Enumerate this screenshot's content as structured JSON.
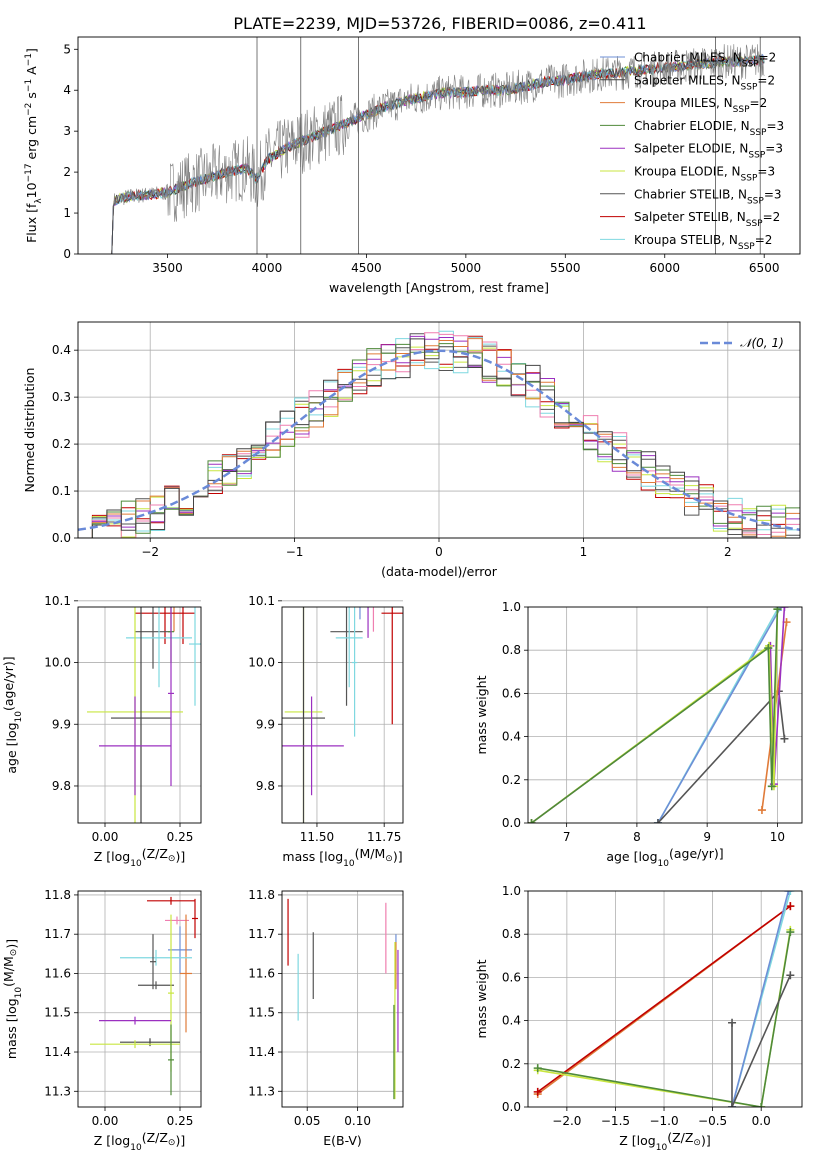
{
  "page_title": "PLATE=2239, MJD=53726, FIBERID=0086, z=0.411",
  "colors": {
    "chabrier_miles": "#6d8fd6",
    "salpeter_miles": "#444444",
    "kroupa_miles": "#e07b39",
    "chabrier_elodie": "#4f8a3a",
    "salpeter_elodie": "#9b30c0",
    "kroupa_elodie": "#c8e640",
    "chabrier_stelib": "#555555",
    "salpeter_stelib": "#c00000",
    "kroupa_stelib": "#7fd8e0",
    "pink": "#ef7fb0",
    "data": "#808080",
    "gaussian": "#6a8ad8",
    "grid": "#b0b0b0"
  },
  "chart_data": [
    {
      "panel": "spectrum",
      "type": "line",
      "title": "PLATE=2239, MJD=53726, FIBERID=0086, z=0.411",
      "xlabel": "wavelength [Angstrom, rest frame]",
      "ylabel": "Flux [f$_\\lambda$10$^{-17}$ erg cm$^{-2}$ s$^{-1}$ A$^{-1}$]",
      "ylabel_parts": [
        "Flux [f",
        "λ",
        "10",
        "−17",
        " erg cm",
        "−2",
        " s",
        "−1",
        " A",
        "−1",
        "]"
      ],
      "xlim": [
        3050,
        6680
      ],
      "ylim": [
        0,
        5.3
      ],
      "xticks": [
        3500,
        4000,
        4500,
        5000,
        5500,
        6000,
        6500
      ],
      "yticks": [
        0,
        1,
        2,
        3,
        4,
        5
      ],
      "grid": false,
      "legend_position": "right",
      "legend": [
        {
          "pre": "Chabrier MILES, N",
          "sub": "SSP",
          "post": "=2",
          "color_key": "chabrier_miles"
        },
        {
          "pre": "Salpeter MILES, N",
          "sub": "SSP",
          "post": "=2",
          "color_key": "salpeter_miles"
        },
        {
          "pre": "Kroupa MILES, N",
          "sub": "SSP",
          "post": "=2",
          "color_key": "kroupa_miles"
        },
        {
          "pre": "Chabrier ELODIE, N",
          "sub": "SSP",
          "post": "=3",
          "color_key": "chabrier_elodie"
        },
        {
          "pre": "Salpeter ELODIE, N",
          "sub": "SSP",
          "post": "=3",
          "color_key": "salpeter_elodie"
        },
        {
          "pre": "Kroupa ELODIE, N",
          "sub": "SSP",
          "post": "=3",
          "color_key": "kroupa_elodie"
        },
        {
          "pre": "Chabrier STELIB, N",
          "sub": "SSP",
          "post": "=3",
          "color_key": "chabrier_stelib"
        },
        {
          "pre": "Salpeter STELIB, N",
          "sub": "SSP",
          "post": "=2",
          "color_key": "salpeter_stelib"
        },
        {
          "pre": "Kroupa STELIB, N",
          "sub": "SSP",
          "post": "=2",
          "color_key": "kroupa_stelib"
        }
      ],
      "continuum": [
        [
          3220,
          0
        ],
        [
          3225,
          1.3
        ],
        [
          3300,
          1.4
        ],
        [
          3400,
          1.45
        ],
        [
          3500,
          1.5
        ],
        [
          3600,
          1.7
        ],
        [
          3700,
          1.85
        ],
        [
          3800,
          2.0
        ],
        [
          3900,
          2.1
        ],
        [
          3950,
          1.8
        ],
        [
          4000,
          2.3
        ],
        [
          4100,
          2.6
        ],
        [
          4200,
          2.8
        ],
        [
          4300,
          3.0
        ],
        [
          4400,
          3.2
        ],
        [
          4500,
          3.4
        ],
        [
          4600,
          3.6
        ],
        [
          4700,
          3.75
        ],
        [
          4800,
          3.85
        ],
        [
          4900,
          3.95
        ],
        [
          5000,
          3.95
        ],
        [
          5100,
          4.0
        ],
        [
          5200,
          4.0
        ],
        [
          5300,
          4.1
        ],
        [
          5400,
          4.2
        ],
        [
          5500,
          4.25
        ],
        [
          5600,
          4.35
        ],
        [
          5700,
          4.4
        ],
        [
          5800,
          4.45
        ],
        [
          5900,
          4.5
        ],
        [
          6000,
          4.55
        ],
        [
          6100,
          4.6
        ],
        [
          6200,
          4.65
        ],
        [
          6300,
          4.7
        ],
        [
          6400,
          4.7
        ],
        [
          6500,
          4.75
        ]
      ],
      "spikes": [
        3950,
        4170,
        4460,
        6255,
        6480
      ]
    },
    {
      "panel": "residuals",
      "type": "line",
      "xlabel": "(data-model)/error",
      "ylabel": "Normed distribution",
      "xlim": [
        -2.5,
        2.5
      ],
      "ylim": [
        0,
        0.46
      ],
      "xticks": [
        -2,
        -1,
        0,
        1,
        2
      ],
      "yticks": [
        0.0,
        0.1,
        0.2,
        0.3,
        0.4
      ],
      "grid": true,
      "legend_position": "top-right",
      "legend_label": "𝒩(0, 1)",
      "gaussian": {
        "mu": 0,
        "sigma": 1
      }
    },
    {
      "panel": "age-vs-Z",
      "type": "scatter",
      "xlabel_parts": [
        "Z [log",
        "10",
        "(Z/Z",
        "⊙",
        ")]"
      ],
      "ylabel_parts": [
        "age  [log",
        "10",
        "(age/yr)]"
      ],
      "xlim": [
        -0.09,
        0.32
      ],
      "ylim": [
        9.74,
        10.09
      ],
      "xticks": [
        0.0,
        0.25
      ],
      "yticks": [
        9.8,
        9.9,
        10.0,
        10.1
      ],
      "grid": true,
      "errorbars": [
        {
          "x": 0.23,
          "y": 10.13,
          "xerr": 0.05,
          "yerr": 0.08,
          "color_key": "kroupa_miles"
        },
        {
          "x": 0.26,
          "y": 10.13,
          "xerr": 0.03,
          "yerr": 0.1,
          "color_key": "salpeter_stelib"
        },
        {
          "x": 0.2,
          "y": 10.08,
          "xerr": 0.1,
          "yerr": 0.05,
          "color_key": "salpeter_stelib"
        },
        {
          "x": 0.16,
          "y": 10.05,
          "xerr": 0.06,
          "yerr": 0.06,
          "color_key": "chabrier_stelib"
        },
        {
          "x": 0.18,
          "y": 10.04,
          "xerr": 0.11,
          "yerr": 0.08,
          "color_key": "kroupa_stelib"
        },
        {
          "x": 0.3,
          "y": 10.03,
          "xerr": 0.02,
          "yerr": 0.1,
          "color_key": "kroupa_stelib"
        },
        {
          "x": 0.22,
          "y": 10.05,
          "xerr": 0.01,
          "yerr": 0.05,
          "color_key": "chabrier_elodie"
        },
        {
          "x": 0.1,
          "y": 9.92,
          "xerr": 0.16,
          "yerr": 0.18,
          "color_key": "kroupa_elodie"
        },
        {
          "x": 0.12,
          "y": 9.91,
          "xerr": 0.1,
          "yerr": 0.2,
          "color_key": "salpeter_miles"
        },
        {
          "x": 0.1,
          "y": 9.865,
          "xerr": 0.12,
          "yerr": 0.08,
          "color_key": "salpeter_elodie"
        },
        {
          "x": 0.22,
          "y": 9.95,
          "xerr": 0.01,
          "yerr": 0.15,
          "color_key": "salpeter_elodie"
        }
      ]
    },
    {
      "panel": "age-vs-mass",
      "type": "scatter",
      "xlabel_parts": [
        "mass [log",
        "10",
        "(M/M",
        "⊙",
        ")]"
      ],
      "ylabel": "",
      "xlim": [
        11.37,
        11.82
      ],
      "ylim": [
        9.74,
        10.09
      ],
      "xticks": [
        11.5,
        11.75
      ],
      "yticks": [
        9.8,
        9.9,
        10.0,
        10.1
      ],
      "grid": true,
      "errorbars": [
        {
          "x": 11.58,
          "y": 10.13,
          "xerr": 0.12,
          "yerr": 0.04,
          "color_key": "kroupa_miles"
        },
        {
          "x": 11.66,
          "y": 10.13,
          "xerr": 0.04,
          "yerr": 0.06,
          "color_key": "chabrier_miles"
        },
        {
          "x": 11.69,
          "y": 10.12,
          "xerr": 0.01,
          "yerr": 0.08,
          "color_key": "salpeter_elodie"
        },
        {
          "x": 11.71,
          "y": 10.1,
          "xerr": 0.01,
          "yerr": 0.05,
          "color_key": "pink"
        },
        {
          "x": 11.61,
          "y": 10.05,
          "xerr": 0.06,
          "yerr": 0.12,
          "color_key": "chabrier_stelib"
        },
        {
          "x": 11.62,
          "y": 10.04,
          "xerr": 0.05,
          "yerr": 0.08,
          "color_key": "kroupa_stelib"
        },
        {
          "x": 11.64,
          "y": 10.0,
          "xerr": 0.01,
          "yerr": 0.12,
          "color_key": "kroupa_stelib"
        },
        {
          "x": 11.78,
          "y": 10.08,
          "xerr": 0.04,
          "yerr": 0.18,
          "color_key": "salpeter_stelib"
        },
        {
          "x": 11.45,
          "y": 9.92,
          "xerr": 0.07,
          "yerr": 0.19,
          "color_key": "kroupa_elodie"
        },
        {
          "x": 11.45,
          "y": 9.91,
          "xerr": 0.08,
          "yerr": 0.2,
          "color_key": "salpeter_miles"
        },
        {
          "x": 11.48,
          "y": 9.865,
          "xerr": 0.12,
          "yerr": 0.08,
          "color_key": "salpeter_elodie"
        }
      ]
    },
    {
      "panel": "weight-vs-age",
      "type": "line",
      "xlabel_parts": [
        "age  [log",
        "10",
        "(age/yr)]"
      ],
      "ylabel": "mass weight",
      "xlim": [
        6.45,
        10.35
      ],
      "ylim": [
        0,
        1.0
      ],
      "xticks": [
        7,
        8,
        9,
        10
      ],
      "yticks": [
        0.0,
        0.2,
        0.4,
        0.6,
        0.8,
        1.0
      ],
      "grid": true,
      "series": [
        {
          "color_key": "kroupa_stelib",
          "points": [
            [
              8.3,
              0.0
            ],
            [
              10.02,
              1.0
            ]
          ]
        },
        {
          "color_key": "chabrier_miles",
          "points": [
            [
              8.3,
              0.0
            ],
            [
              10.05,
              1.0
            ]
          ]
        },
        {
          "color_key": "chabrier_stelib",
          "points": [
            [
              8.3,
              0.0
            ],
            [
              10.02,
              0.61
            ],
            [
              10.1,
              0.39
            ]
          ]
        },
        {
          "color_key": "kroupa_miles",
          "points": [
            [
              9.78,
              0.06
            ],
            [
              10.13,
              0.93
            ]
          ]
        },
        {
          "color_key": "salpeter_elodie",
          "points": [
            [
              6.5,
              0.0
            ],
            [
              9.9,
              0.82
            ],
            [
              9.95,
              0.18
            ],
            [
              10.1,
              1.0
            ]
          ]
        },
        {
          "color_key": "kroupa_elodie",
          "points": [
            [
              6.5,
              0.0
            ],
            [
              9.88,
              0.82
            ],
            [
              9.95,
              0.17
            ],
            [
              10.0,
              0.99
            ]
          ]
        },
        {
          "color_key": "chabrier_elodie",
          "points": [
            [
              6.5,
              0.0
            ],
            [
              9.87,
              0.81
            ],
            [
              9.92,
              0.17
            ],
            [
              10.0,
              0.99
            ]
          ]
        }
      ]
    },
    {
      "panel": "mass-vs-Z",
      "type": "scatter",
      "xlabel_parts": [
        "Z [log",
        "10",
        "(Z/Z",
        "⊙",
        ")]"
      ],
      "ylabel_parts": [
        "mass [log",
        "10",
        "(M/M",
        "⊙",
        ")]"
      ],
      "xlim": [
        -0.09,
        0.32
      ],
      "ylim": [
        11.26,
        11.81
      ],
      "xticks": [
        0.0,
        0.25
      ],
      "yticks": [
        11.3,
        11.4,
        11.5,
        11.6,
        11.7,
        11.8
      ],
      "grid": true,
      "errorbars": [
        {
          "x": 0.22,
          "y": 11.785,
          "xerr": 0.08,
          "yerr": 0.01,
          "color_key": "salpeter_stelib"
        },
        {
          "x": 0.3,
          "y": 11.74,
          "xerr": 0.01,
          "yerr": 0.05,
          "color_key": "salpeter_stelib"
        },
        {
          "x": 0.24,
          "y": 11.735,
          "xerr": 0.04,
          "yerr": 0.01,
          "color_key": "pink"
        },
        {
          "x": 0.25,
          "y": 11.66,
          "xerr": 0.04,
          "yerr": 0.06,
          "color_key": "chabrier_miles"
        },
        {
          "x": 0.27,
          "y": 11.6,
          "xerr": 0.02,
          "yerr": 0.15,
          "color_key": "kroupa_miles"
        },
        {
          "x": 0.17,
          "y": 11.64,
          "xerr": 0.12,
          "yerr": 0.02,
          "color_key": "kroupa_stelib"
        },
        {
          "x": 0.16,
          "y": 11.63,
          "xerr": 0.01,
          "yerr": 0.07,
          "color_key": "chabrier_stelib"
        },
        {
          "x": 0.17,
          "y": 11.57,
          "xerr": 0.06,
          "yerr": 0.01,
          "color_key": "chabrier_stelib"
        },
        {
          "x": 0.22,
          "y": 11.55,
          "xerr": 0.01,
          "yerr": 0.2,
          "color_key": "kroupa_elodie"
        },
        {
          "x": 0.1,
          "y": 11.48,
          "xerr": 0.12,
          "yerr": 0.01,
          "color_key": "salpeter_elodie"
        },
        {
          "x": 0.15,
          "y": 11.425,
          "xerr": 0.1,
          "yerr": 0.01,
          "color_key": "salpeter_miles"
        },
        {
          "x": 0.1,
          "y": 11.42,
          "xerr": 0.15,
          "yerr": 0.01,
          "color_key": "kroupa_elodie"
        },
        {
          "x": 0.22,
          "y": 11.38,
          "xerr": 0.01,
          "yerr": 0.09,
          "color_key": "chabrier_elodie"
        }
      ]
    },
    {
      "panel": "mass-vs-EBV",
      "type": "scatter",
      "xlabel": "E(B-V)",
      "ylabel": "",
      "xlim": [
        0.025,
        0.145
      ],
      "ylim": [
        11.26,
        11.81
      ],
      "xticks": [
        0.05,
        0.1
      ],
      "yticks": [
        11.3,
        11.4,
        11.5,
        11.6,
        11.7,
        11.8
      ],
      "grid": true,
      "errorbars": [
        {
          "x": 0.031,
          "y": 11.705,
          "xerr": 0,
          "yerr": 0.085,
          "color_key": "salpeter_stelib"
        },
        {
          "x": 0.041,
          "y": 11.565,
          "xerr": 0,
          "yerr": 0.085,
          "color_key": "kroupa_stelib"
        },
        {
          "x": 0.056,
          "y": 11.62,
          "xerr": 0,
          "yerr": 0.085,
          "color_key": "chabrier_stelib"
        },
        {
          "x": 0.128,
          "y": 11.69,
          "xerr": 0,
          "yerr": 0.09,
          "color_key": "pink"
        },
        {
          "x": 0.138,
          "y": 11.64,
          "xerr": 0,
          "yerr": 0.06,
          "color_key": "chabrier_miles"
        },
        {
          "x": 0.138,
          "y": 11.62,
          "xerr": 0,
          "yerr": 0.06,
          "color_key": "kroupa_miles"
        },
        {
          "x": 0.14,
          "y": 11.53,
          "xerr": 0,
          "yerr": 0.13,
          "color_key": "salpeter_elodie"
        },
        {
          "x": 0.137,
          "y": 11.48,
          "xerr": 0,
          "yerr": 0.2,
          "color_key": "kroupa_elodie"
        },
        {
          "x": 0.136,
          "y": 11.4,
          "xerr": 0,
          "yerr": 0.12,
          "color_key": "chabrier_elodie"
        }
      ]
    },
    {
      "panel": "weight-vs-Z",
      "type": "line",
      "xlabel_parts": [
        "Z [log",
        "10",
        "(Z/Z",
        "⊙",
        ")]"
      ],
      "ylabel": "mass weight",
      "xlim": [
        -2.4,
        0.42
      ],
      "ylim": [
        0,
        1.0
      ],
      "xticks": [
        -2.0,
        -1.5,
        -1.0,
        -0.5,
        0.0
      ],
      "yticks": [
        0.0,
        0.2,
        0.4,
        0.6,
        0.8,
        1.0
      ],
      "grid": true,
      "series": [
        {
          "color_key": "kroupa_miles",
          "points": [
            [
              -2.3,
              0.06
            ],
            [
              0.3,
              0.93
            ]
          ]
        },
        {
          "color_key": "salpeter_stelib",
          "points": [
            [
              -2.3,
              0.07
            ],
            [
              0.3,
              0.93
            ]
          ]
        },
        {
          "color_key": "kroupa_elodie",
          "points": [
            [
              -2.3,
              0.17
            ],
            [
              0.0,
              0.0
            ],
            [
              0.3,
              0.82
            ]
          ]
        },
        {
          "color_key": "chabrier_elodie",
          "points": [
            [
              -2.3,
              0.18
            ],
            [
              0.0,
              0.0
            ],
            [
              0.3,
              0.81
            ]
          ]
        },
        {
          "color_key": "kroupa_stelib",
          "points": [
            [
              -0.3,
              0.0
            ],
            [
              0.3,
              1.0
            ]
          ]
        },
        {
          "color_key": "chabrier_miles",
          "points": [
            [
              -0.3,
              0.0
            ],
            [
              0.28,
              1.0
            ]
          ]
        },
        {
          "color_key": "chabrier_stelib",
          "points": [
            [
              -0.3,
              0.39
            ],
            [
              -0.3,
              0.0
            ],
            [
              0.3,
              0.61
            ]
          ]
        }
      ]
    }
  ]
}
